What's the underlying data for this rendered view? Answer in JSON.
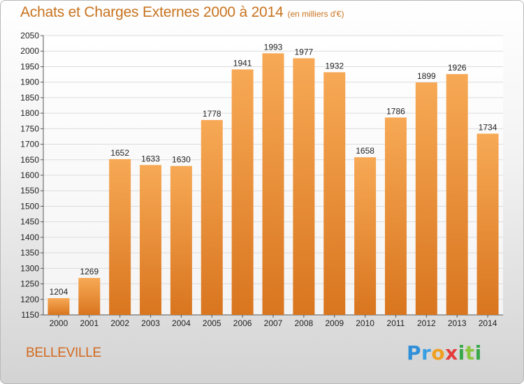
{
  "chart_data": {
    "type": "bar",
    "title": "Achats et Charges Externes 2000 à 2014",
    "subtitle": "(en milliers d'€)",
    "categories": [
      "2000",
      "2001",
      "2002",
      "2003",
      "2004",
      "2005",
      "2006",
      "2007",
      "2008",
      "2009",
      "2010",
      "2011",
      "2012",
      "2013",
      "2014"
    ],
    "values": [
      1204,
      1269,
      1652,
      1633,
      1630,
      1778,
      1941,
      1993,
      1977,
      1932,
      1658,
      1786,
      1899,
      1926,
      1734
    ],
    "ylim": [
      1150,
      2050
    ],
    "yticks": [
      1150,
      1200,
      1250,
      1300,
      1350,
      1400,
      1450,
      1500,
      1550,
      1600,
      1650,
      1700,
      1750,
      1800,
      1850,
      1900,
      1950,
      2000,
      2050
    ],
    "grid": true,
    "xlabel": "",
    "ylabel": "",
    "colors": {
      "bar_top": "#f7a955",
      "bar_bottom": "#d9751f",
      "title": "#c8731e"
    }
  },
  "footer": {
    "city": "BELLEVILLE",
    "brand": [
      "P",
      "r",
      "o",
      "x",
      "i",
      "t",
      "i"
    ]
  }
}
